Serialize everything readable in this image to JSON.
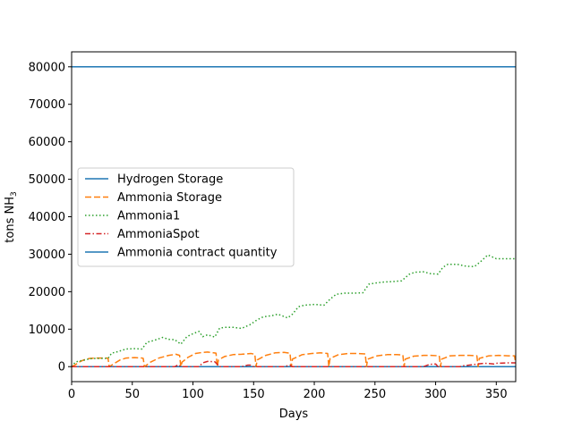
{
  "chart_data": {
    "type": "line",
    "title": "",
    "xlabel": "Days",
    "ylabel": "tons NH",
    "ylabel_sub": "3",
    "xlim": [
      0,
      366
    ],
    "ylim": [
      -4000,
      84000
    ],
    "xticks": [
      0,
      50,
      100,
      150,
      200,
      250,
      300,
      350
    ],
    "yticks": [
      0,
      10000,
      20000,
      30000,
      40000,
      50000,
      60000,
      70000,
      80000
    ],
    "grid": false,
    "legend_position": "center-left",
    "series": [
      {
        "name": "Hydrogen Storage",
        "color": "#1f77b4",
        "style": "solid",
        "x": [
          0,
          366
        ],
        "y": [
          0,
          0
        ]
      },
      {
        "name": "Ammonia Storage",
        "color": "#ff7f0e",
        "style": "dashed",
        "x": [
          0,
          3,
          6,
          10,
          15,
          22,
          29,
          30,
          31,
          35,
          40,
          45,
          52,
          58,
          59,
          60,
          65,
          72,
          80,
          86,
          89,
          90,
          91,
          96,
          102,
          108,
          112,
          119,
          120,
          121,
          126,
          133,
          140,
          148,
          151,
          152,
          153,
          160,
          168,
          175,
          180,
          181,
          182,
          190,
          198,
          205,
          211,
          212,
          213,
          220,
          228,
          236,
          242,
          243,
          244,
          252,
          260,
          268,
          273,
          274,
          275,
          282,
          290,
          296,
          303,
          304,
          305,
          312,
          320,
          328,
          334,
          335,
          336,
          344,
          352,
          360,
          365,
          366
        ],
        "y": [
          0,
          500,
          1200,
          1800,
          2200,
          2300,
          2300,
          2200,
          0,
          800,
          1800,
          2300,
          2400,
          2300,
          2200,
          0,
          1200,
          2300,
          3000,
          3300,
          3000,
          0,
          1200,
          2500,
          3500,
          3800,
          3900,
          3600,
          0,
          1800,
          2700,
          3200,
          3300,
          3500,
          3300,
          0,
          1800,
          3000,
          3700,
          3800,
          3600,
          0,
          2000,
          3200,
          3500,
          3700,
          3500,
          0,
          2200,
          3200,
          3500,
          3500,
          3400,
          0,
          2000,
          2900,
          3200,
          3200,
          3100,
          0,
          2000,
          2800,
          3000,
          3000,
          2900,
          0,
          2000,
          2900,
          3000,
          3000,
          2900,
          0,
          2200,
          2900,
          3000,
          2900,
          2900,
          900
        ]
      },
      {
        "name": "Ammonia1",
        "color": "#2ca02c",
        "style": "dotted",
        "x": [
          0,
          3,
          6,
          10,
          15,
          20,
          25,
          30,
          33,
          38,
          45,
          52,
          58,
          62,
          68,
          75,
          80,
          85,
          90,
          95,
          100,
          105,
          108,
          112,
          118,
          122,
          127,
          133,
          140,
          147,
          153,
          158,
          165,
          170,
          178,
          182,
          187,
          192,
          200,
          208,
          213,
          218,
          225,
          232,
          240,
          245,
          250,
          258,
          265,
          272,
          278,
          283,
          290,
          296,
          302,
          306,
          310,
          318,
          325,
          332,
          337,
          343,
          350,
          358,
          366
        ],
        "y": [
          0,
          1200,
          1500,
          1700,
          2100,
          2200,
          2200,
          2200,
          3600,
          4000,
          4700,
          4800,
          4700,
          6500,
          7000,
          7800,
          7300,
          7200,
          6000,
          8000,
          8800,
          9400,
          8000,
          8500,
          7900,
          10300,
          10500,
          10500,
          10200,
          11200,
          12500,
          13300,
          13600,
          14000,
          13000,
          14000,
          16000,
          16400,
          16600,
          16400,
          18000,
          19300,
          19600,
          19600,
          19700,
          22000,
          22300,
          22600,
          22700,
          22900,
          24600,
          25200,
          25300,
          24800,
          24700,
          26500,
          27300,
          27300,
          26800,
          26700,
          28000,
          29800,
          28800,
          28800,
          28800
        ]
      },
      {
        "name": "AmmoniaSpot",
        "color": "#d62728",
        "style": "dashdot",
        "x": [
          0,
          40,
          60,
          85,
          88,
          90,
          105,
          108,
          112,
          118,
          122,
          140,
          145,
          148,
          150,
          175,
          180,
          182,
          200,
          210,
          215,
          240,
          250,
          290,
          295,
          300,
          302,
          320,
          322,
          325,
          330,
          332,
          340,
          345,
          348,
          350,
          360,
          366
        ],
        "y": [
          0,
          0,
          0,
          0,
          500,
          0,
          0,
          1000,
          1400,
          1300,
          0,
          0,
          400,
          400,
          0,
          0,
          400,
          0,
          0,
          0,
          0,
          0,
          0,
          0,
          600,
          700,
          0,
          0,
          200,
          300,
          500,
          600,
          900,
          800,
          700,
          900,
          1000,
          1000
        ]
      },
      {
        "name": "Ammonia contract quantity",
        "color": "#1f77b4",
        "style": "solid",
        "x": [
          0,
          366
        ],
        "y": [
          80000,
          80000
        ]
      }
    ]
  }
}
